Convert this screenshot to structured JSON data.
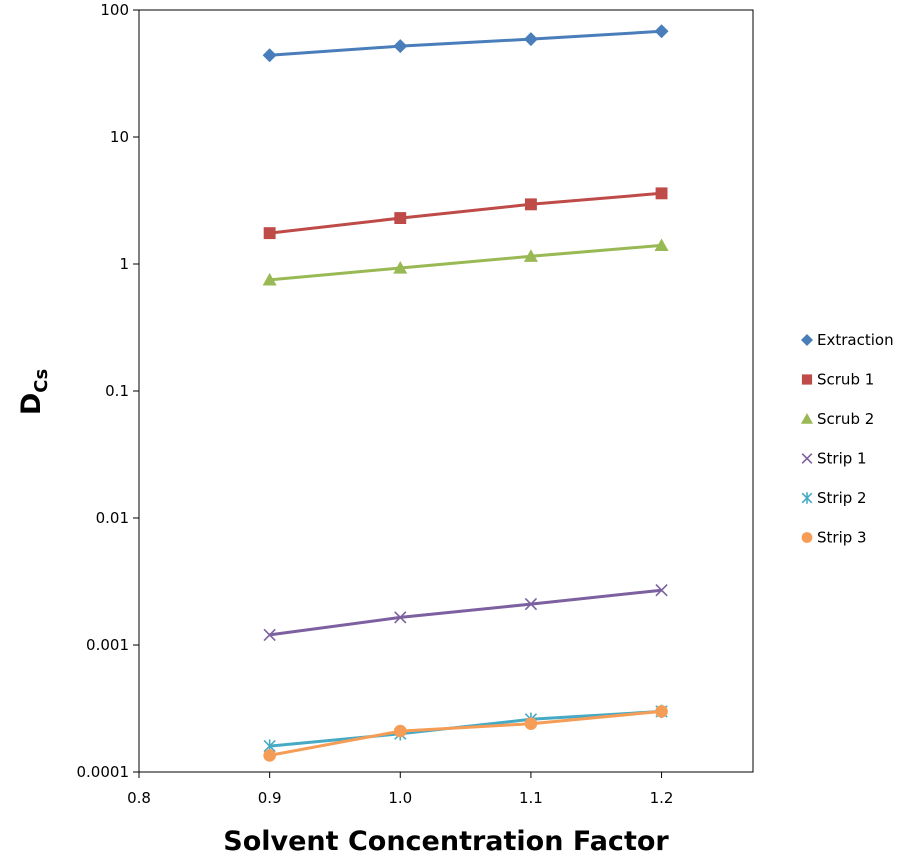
{
  "chart_data": {
    "type": "scatter",
    "xlabel": "Solvent Concentration Factor",
    "ylabel_main": "D",
    "ylabel_sub": "Cs",
    "xlim": [
      0.8,
      1.27
    ],
    "ylim": [
      0.0001,
      100
    ],
    "yscale": "log",
    "x_ticks": [
      0.8,
      0.9,
      1.0,
      1.1,
      1.2
    ],
    "x_tick_labels": [
      "0.8",
      "0.9",
      "1.0",
      "1.1",
      "1.2"
    ],
    "y_ticks": [
      0.0001,
      0.001,
      0.01,
      0.1,
      1,
      10,
      100
    ],
    "y_tick_labels": [
      "0.0001",
      "0.001",
      "0.01",
      "0.1",
      "1",
      "10",
      "100"
    ],
    "grid": false,
    "legend_position": "right",
    "series": [
      {
        "name": "Extraction",
        "marker": "diamond",
        "color": "#4a7ebb",
        "x": [
          0.9,
          1.0,
          1.1,
          1.2
        ],
        "y": [
          44,
          52,
          59,
          68
        ]
      },
      {
        "name": "Scrub 1",
        "marker": "square",
        "color": "#be4b48",
        "x": [
          0.9,
          1.0,
          1.1,
          1.2
        ],
        "y": [
          1.75,
          2.3,
          2.95,
          3.6
        ]
      },
      {
        "name": "Scrub 2",
        "marker": "triangle",
        "color": "#98b954",
        "x": [
          0.9,
          1.0,
          1.1,
          1.2
        ],
        "y": [
          0.75,
          0.93,
          1.15,
          1.4
        ]
      },
      {
        "name": "Strip 1",
        "marker": "x",
        "color": "#7d60a0",
        "x": [
          0.9,
          1.0,
          1.1,
          1.2
        ],
        "y": [
          0.0012,
          0.00165,
          0.0021,
          0.0027
        ]
      },
      {
        "name": "Strip 2",
        "marker": "star",
        "color": "#46aac5",
        "x": [
          0.9,
          1.0,
          1.1,
          1.2
        ],
        "y": [
          0.00016,
          0.0002,
          0.00026,
          0.0003
        ]
      },
      {
        "name": "Strip 3",
        "marker": "circle",
        "color": "#f59d56",
        "x": [
          0.9,
          1.0,
          1.1,
          1.2
        ],
        "y": [
          0.000135,
          0.00021,
          0.00024,
          0.0003
        ]
      }
    ]
  }
}
